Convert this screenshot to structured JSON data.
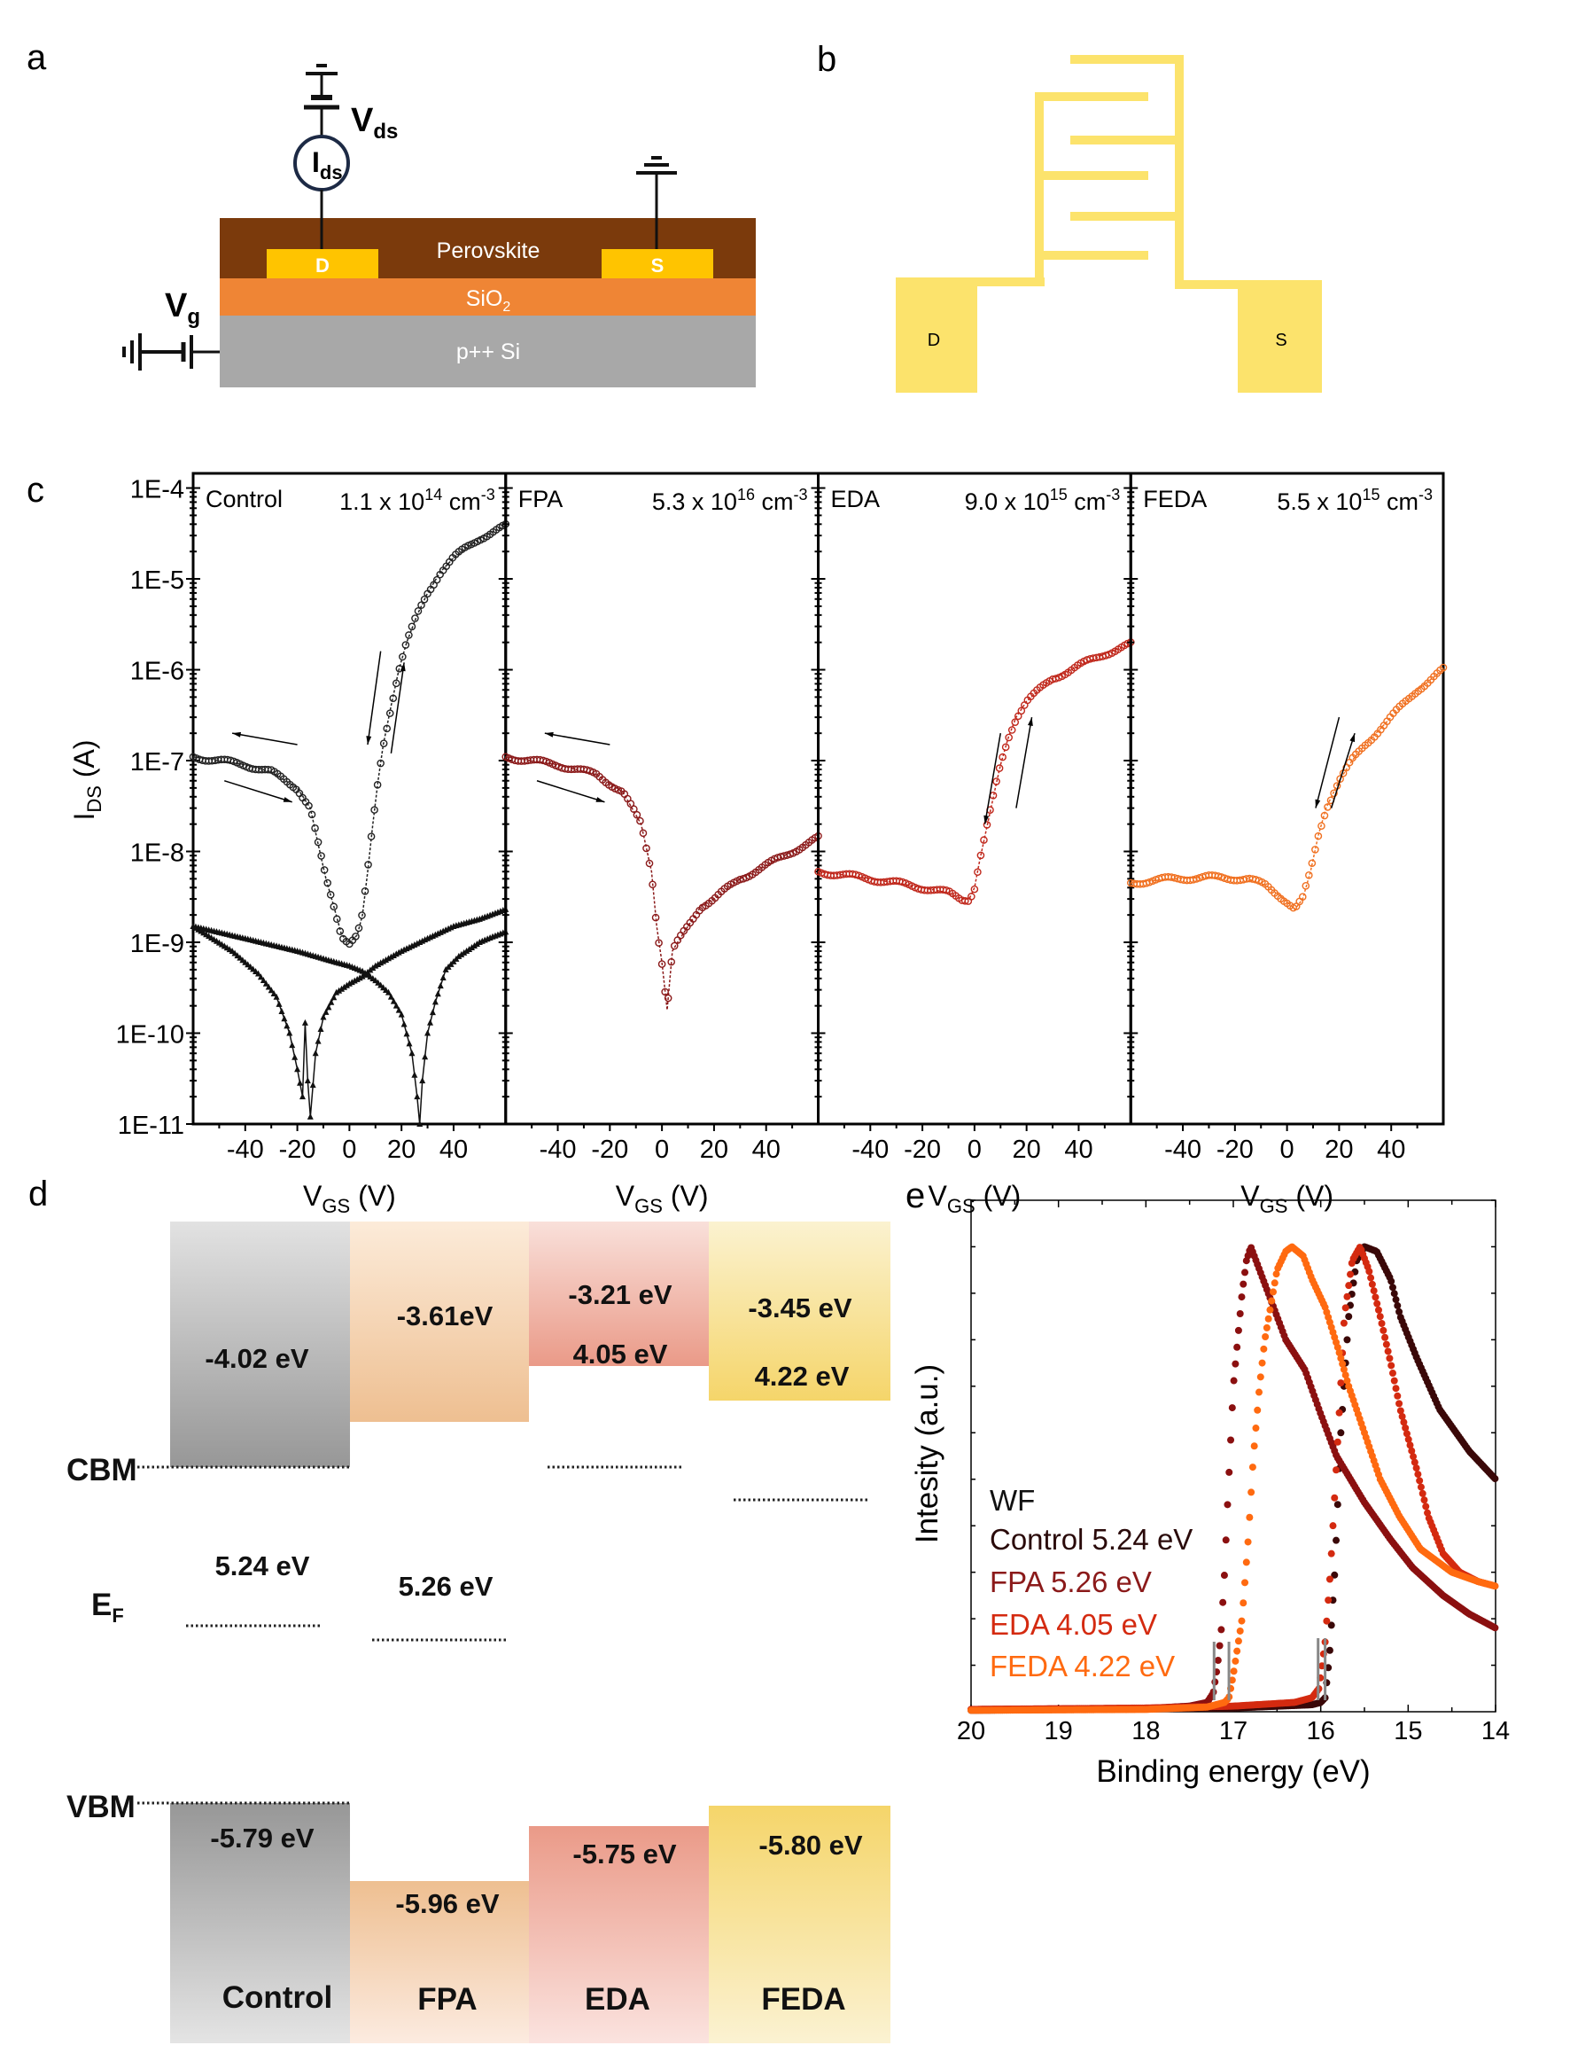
{
  "panel_labels": {
    "a": "a",
    "b": "b",
    "c": "c",
    "d": "d",
    "e": "e"
  },
  "panel_a": {
    "layers": {
      "perovskite": "Perovskite",
      "sio2": "SiO",
      "sio2_sub": "2",
      "si": "p++ Si"
    },
    "drain": "D",
    "source": "S",
    "vds": "V",
    "vds_sub": "ds",
    "ids": "I",
    "ids_sub": "ds",
    "vg": "V",
    "vg_sub": "g",
    "colors": {
      "perovskite": "#7b3a0c",
      "sio2": "#ef8535",
      "si": "#a8a8a8",
      "electrode": "#ffc400"
    }
  },
  "panel_b": {
    "drain": "D",
    "source": "S",
    "electrode_color": "#fce36c"
  },
  "panel_d": {
    "cbm_label": "CBM",
    "vbm_label": "VBM",
    "ef_label": "E",
    "ef_sub": "F",
    "samples": [
      {
        "name": "Control",
        "cbm": "-4.02 eV",
        "vbm": "-5.79 eV",
        "ef": "5.24 eV"
      },
      {
        "name": "FPA",
        "cbm": "-3.61eV",
        "vbm": "-5.96 eV",
        "ef": "5.26 eV"
      },
      {
        "name": "EDA",
        "cbm": "-3.21 eV",
        "vbm": "-5.75 eV",
        "ef": "4.05 eV"
      },
      {
        "name": "FEDA",
        "cbm": "-3.45 eV",
        "vbm": "-5.80 eV",
        "ef": "4.22 eV"
      }
    ]
  },
  "chart_data": [
    {
      "type": "scatter",
      "y_scale": "log",
      "xlim": [
        -60,
        60
      ],
      "ylim": [
        1e-11,
        0.000145
      ],
      "xticks": [
        -40,
        -20,
        0,
        20,
        40
      ],
      "yticks": [
        {
          "value": 0.0001,
          "label": "1E-4"
        },
        {
          "value": 1e-05,
          "label": "1E-5"
        },
        {
          "value": 1e-06,
          "label": "1E-6"
        },
        {
          "value": 1e-07,
          "label": "1E-7"
        },
        {
          "value": 1e-08,
          "label": "1E-8"
        },
        {
          "value": 1e-09,
          "label": "1E-9"
        },
        {
          "value": 1e-10,
          "label": "1E-10"
        },
        {
          "value": 1e-11,
          "label": "1E-11"
        }
      ],
      "xlabel": {
        "main": "V",
        "sub": "GS",
        "rest": " (V)"
      },
      "ylabel": {
        "main": "I",
        "sub": "DS",
        "rest": " (A)"
      },
      "panels": [
        {
          "label": "Control",
          "conc": {
            "base": "1.1 x 10",
            "exp": "14",
            "unit": " cm",
            "unit_exp": "-3"
          },
          "series": [
            {
              "marker": "circle",
              "color": "#222222",
              "x": [
                -60,
                -50,
                -40,
                -30,
                -20,
                -15,
                -12,
                -9,
                -6,
                -3,
                0,
                3,
                5,
                7,
                9,
                11,
                13,
                16,
                19,
                22,
                26,
                30,
                35,
                40,
                45,
                50,
                55,
                60
              ],
              "y": [
                1.1e-07,
                1e-07,
                9e-08,
                7.5e-08,
                5e-08,
                3e-08,
                1.2e-08,
                5e-09,
                2.5e-09,
                1.2e-09,
                1e-09,
                1.2e-09,
                2e-09,
                6e-09,
                2e-08,
                6e-08,
                1.5e-07,
                4e-07,
                1e-06,
                2e-06,
                4e-06,
                7e-06,
                1.2e-05,
                1.7e-05,
                2.2e-05,
                2.8e-05,
                3.3e-05,
                3.8e-05
              ]
            },
            {
              "marker": "triangle",
              "color": "#111111",
              "x": [
                -60,
                -45,
                -35,
                -28,
                -23,
                -20,
                -18,
                -17,
                -16,
                -15,
                -13,
                -10,
                -5,
                0,
                5,
                10,
                20,
                30,
                40,
                50,
                60
              ],
              "y": [
                1.5e-09,
                8e-10,
                4.5e-10,
                2.5e-10,
                1e-10,
                4e-11,
                2e-11,
                1.3e-10,
                3e-11,
                1.2e-11,
                6e-11,
                1.5e-10,
                2.8e-10,
                3.5e-10,
                4.2e-10,
                5.5e-10,
                8e-10,
                1.1e-09,
                1.5e-09,
                1.8e-09,
                2.3e-09
              ]
            },
            {
              "marker": "triangle",
              "color": "#111111",
              "x": [
                -60,
                -40,
                -20,
                -5,
                0,
                5,
                10,
                15,
                20,
                24,
                26,
                27,
                28,
                30,
                33,
                37,
                42,
                50,
                55,
                60
              ],
              "y": [
                1.5e-09,
                1.1e-09,
                8e-10,
                6e-10,
                5.5e-10,
                4.8e-10,
                3.8e-10,
                2.8e-10,
                1.6e-10,
                6e-11,
                2e-11,
                1e-11,
                3e-11,
                1e-10,
                2.2e-10,
                5e-10,
                7e-10,
                1e-09,
                1.15e-09,
                1.3e-09
              ]
            }
          ]
        },
        {
          "label": "FPA",
          "conc": {
            "base": "5.3 x 10",
            "exp": "16",
            "unit": " cm",
            "unit_exp": "-3"
          },
          "series": [
            {
              "marker": "circle",
              "color": "#8b1a1a",
              "x": [
                -60,
                -40,
                -25,
                -15,
                -8,
                -4,
                -2,
                0,
                2,
                4,
                6,
                10,
                15,
                20,
                30,
                40,
                50,
                60
              ],
              "y": [
                1.1e-07,
                9e-08,
                7e-08,
                4.5e-08,
                2e-08,
                6e-09,
                1.5e-09,
                6e-10,
                1.8e-10,
                8e-10,
                1e-09,
                1.5e-09,
                2.5e-09,
                3e-09,
                5e-09,
                7e-09,
                1e-08,
                1.4e-08
              ]
            }
          ]
        },
        {
          "label": "EDA",
          "conc": {
            "base": "9.0 x 10",
            "exp": "15",
            "unit": " cm",
            "unit_exp": "-3"
          },
          "series": [
            {
              "marker": "circle",
              "color": "#c0281c",
              "x": [
                -60,
                -50,
                -40,
                -30,
                -20,
                -10,
                -5,
                -2,
                0,
                2,
                5,
                8,
                10,
                13,
                16,
                20,
                25,
                30,
                40,
                50,
                60
              ],
              "y": [
                6e-09,
                5.5e-09,
                5e-09,
                4.5e-09,
                4e-09,
                3.5e-09,
                3e-09,
                3e-09,
                4e-09,
                8e-09,
                2e-08,
                5e-08,
                9e-08,
                1.8e-07,
                3e-07,
                4.5e-07,
                6e-07,
                8e-07,
                1.1e-06,
                1.5e-06,
                1.9e-06
              ]
            }
          ]
        },
        {
          "label": "FEDA",
          "conc": {
            "base": "5.5 x 10",
            "exp": "15",
            "unit": " cm",
            "unit_exp": "-3"
          },
          "series": [
            {
              "marker": "circle",
              "color": "#f07020",
              "x": [
                -60,
                -45,
                -30,
                -15,
                -8,
                -3,
                0,
                3,
                6,
                9,
                12,
                15,
                20,
                25,
                30,
                40,
                50,
                60
              ],
              "y": [
                4.5e-09,
                5e-09,
                5.2e-09,
                5e-09,
                4.2e-09,
                3.3e-09,
                2.8e-09,
                2.3e-09,
                3e-09,
                6e-09,
                1.5e-08,
                3e-08,
                6e-08,
                1e-07,
                1.5e-07,
                3e-07,
                6e-07,
                1e-06
              ]
            }
          ]
        }
      ]
    },
    {
      "type": "scatter",
      "xlim": [
        20,
        14
      ],
      "ylim": [
        0,
        1.1
      ],
      "xticks": [
        20,
        19,
        18,
        17,
        16,
        15,
        14
      ],
      "xlabel": "Binding energy (eV)",
      "ylabel": "Intesity (a.u.)",
      "legend_title": "WF",
      "legend": [
        {
          "text": "Control 5.24 eV",
          "color": "#2a0a0a"
        },
        {
          "text": "FPA 5.26 eV",
          "color": "#8b1a1a"
        },
        {
          "text": "EDA 4.05 eV",
          "color": "#d42a10"
        },
        {
          "text": "FEDA 4.22 eV",
          "color": "#ff6a10"
        }
      ],
      "cutoff_markers": [
        17.22,
        17.05,
        16.03,
        15.95
      ],
      "series": [
        {
          "name": "Control",
          "color": "#3a0808",
          "x": [
            20,
            17,
            16.1,
            16.0,
            15.95,
            15.9,
            15.84,
            15.77,
            15.68,
            15.59,
            15.5,
            15.36,
            15.2,
            15.09,
            14.9,
            14.64,
            14.3,
            14.0
          ],
          "y": [
            0.003,
            0.008,
            0.015,
            0.02,
            0.03,
            0.12,
            0.3,
            0.6,
            0.85,
            0.97,
            1.0,
            0.99,
            0.93,
            0.85,
            0.76,
            0.65,
            0.56,
            0.5
          ]
        },
        {
          "name": "FPA",
          "color": "#8b1010",
          "x": [
            20,
            18,
            17.5,
            17.3,
            17.23,
            17.18,
            17.14,
            17.1,
            17.07,
            17.0,
            16.95,
            16.9,
            16.85,
            16.8,
            16.6,
            16.4,
            16.18,
            16.0,
            15.82,
            15.5,
            15.2,
            14.95,
            14.6,
            14.3,
            14.0
          ],
          "y": [
            0.005,
            0.007,
            0.012,
            0.02,
            0.04,
            0.1,
            0.17,
            0.3,
            0.43,
            0.7,
            0.8,
            0.9,
            0.97,
            1.0,
            0.9,
            0.8,
            0.735,
            0.64,
            0.55,
            0.45,
            0.37,
            0.31,
            0.25,
            0.21,
            0.18
          ]
        },
        {
          "name": "EDA",
          "color": "#d42a10",
          "x": [
            20,
            18,
            17,
            16.3,
            16.1,
            16.02,
            15.95,
            15.89,
            15.8,
            15.73,
            15.64,
            15.55,
            15.45,
            15.32,
            15.2,
            15.09,
            14.9,
            14.77,
            14.6,
            14.41,
            14.2,
            14.0
          ],
          "y": [
            0.005,
            0.008,
            0.012,
            0.02,
            0.03,
            0.05,
            0.15,
            0.3,
            0.6,
            0.85,
            0.97,
            1.0,
            0.95,
            0.85,
            0.75,
            0.65,
            0.52,
            0.42,
            0.34,
            0.3,
            0.28,
            0.27
          ]
        },
        {
          "name": "FEDA",
          "color": "#ff6a10",
          "x": [
            20,
            18,
            17.3,
            17.1,
            17.05,
            17.0,
            16.9,
            16.83,
            16.77,
            16.7,
            16.64,
            16.5,
            16.4,
            16.33,
            16.2,
            16.1,
            15.95,
            15.8,
            15.68,
            15.5,
            15.32,
            15.1,
            14.86,
            14.5,
            14.2,
            14.0
          ],
          "y": [
            0.003,
            0.005,
            0.01,
            0.02,
            0.03,
            0.08,
            0.2,
            0.37,
            0.55,
            0.7,
            0.8,
            0.95,
            0.99,
            1.0,
            0.98,
            0.93,
            0.87,
            0.78,
            0.7,
            0.6,
            0.5,
            0.42,
            0.35,
            0.3,
            0.28,
            0.27
          ]
        }
      ]
    }
  ]
}
